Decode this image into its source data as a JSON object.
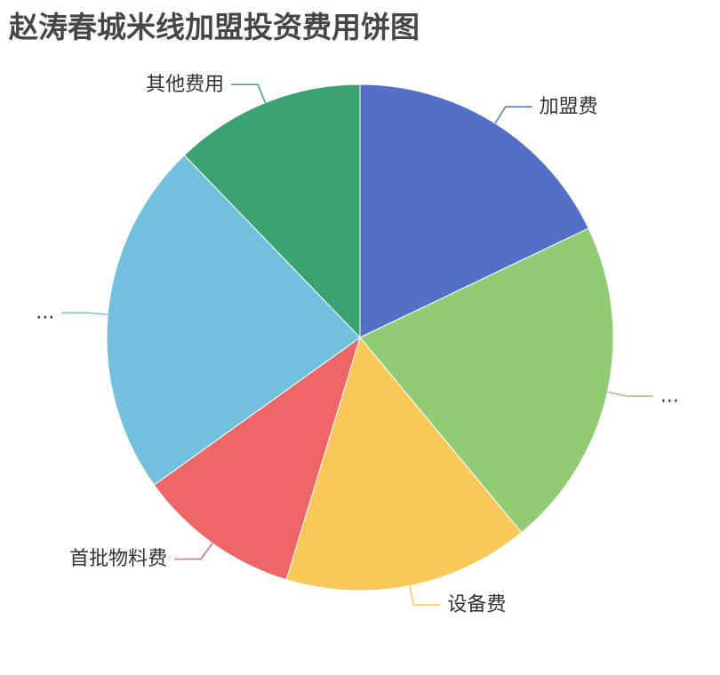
{
  "chart_data": {
    "type": "pie",
    "title": "赵涛春城米线加盟投资费用饼图",
    "slices": [
      {
        "label": "加盟费",
        "display_label": "加盟费",
        "value": 17.9,
        "color": "#5470c6"
      },
      {
        "label": "",
        "display_label": "...",
        "value": 21.1,
        "color": "#91cc75"
      },
      {
        "label": "设备费",
        "display_label": "设备费",
        "value": 15.7,
        "color": "#fac858"
      },
      {
        "label": "首批物料费",
        "display_label": "首批物料费",
        "value": 10.4,
        "color": "#ee6666"
      },
      {
        "label": "",
        "display_label": "...",
        "value": 22.7,
        "color": "#73c0de"
      },
      {
        "label": "其他费用",
        "display_label": "其他费用",
        "value": 12.2,
        "color": "#3ba272"
      }
    ],
    "start_angle_deg": 90,
    "direction": "clockwise",
    "legend": "none"
  }
}
